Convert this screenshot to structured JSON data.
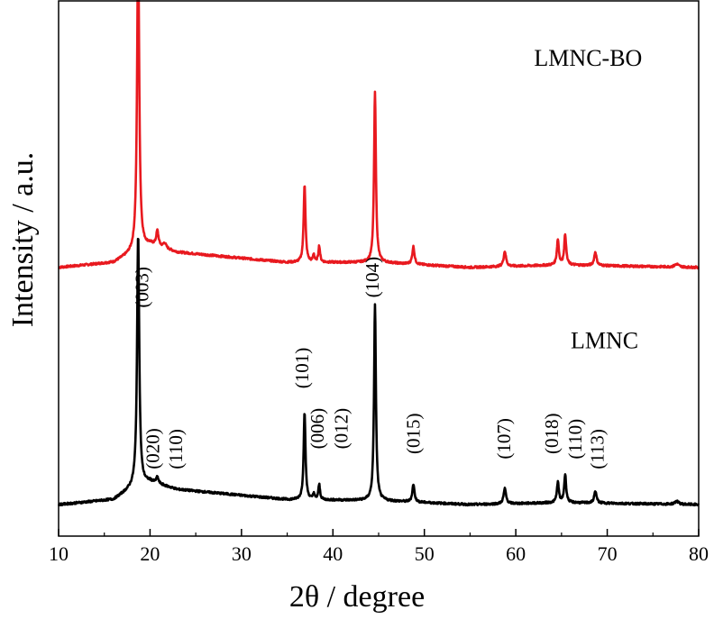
{
  "chart_data": {
    "type": "line",
    "xlabel": "2θ / degree",
    "ylabel": "Intensity / a.u.",
    "xlim": [
      10,
      80
    ],
    "x_ticks": [
      10,
      20,
      30,
      40,
      50,
      60,
      70,
      80
    ],
    "y_ticks_shown": false,
    "grid": false,
    "colors": {
      "LMNC-BO": "#e8191f",
      "LMNC": "#000000"
    },
    "series": [
      {
        "name": "LMNC-BO",
        "baseline": 0.47,
        "background": [
          [
            10,
            0.0
          ],
          [
            16,
            0.01
          ],
          [
            18.2,
            0.03
          ],
          [
            20,
            0.045
          ],
          [
            23,
            0.03
          ],
          [
            35,
            0.01
          ],
          [
            45,
            0.01
          ],
          [
            55,
            0.0
          ],
          [
            65,
            0.005
          ],
          [
            80,
            0.0
          ]
        ],
        "peaks": [
          {
            "x": 18.7,
            "h": 0.61,
            "w": 0.14
          },
          {
            "x": 20.8,
            "h": 0.03,
            "w": 0.15
          },
          {
            "x": 21.6,
            "h": 0.01,
            "w": 0.2
          },
          {
            "x": 36.9,
            "h": 0.155,
            "w": 0.12
          },
          {
            "x": 37.9,
            "h": 0.015,
            "w": 0.1
          },
          {
            "x": 38.5,
            "h": 0.032,
            "w": 0.11
          },
          {
            "x": 44.6,
            "h": 0.34,
            "w": 0.12
          },
          {
            "x": 48.8,
            "h": 0.035,
            "w": 0.14
          },
          {
            "x": 58.8,
            "h": 0.03,
            "w": 0.16
          },
          {
            "x": 64.6,
            "h": 0.05,
            "w": 0.13
          },
          {
            "x": 65.4,
            "h": 0.06,
            "w": 0.13
          },
          {
            "x": 68.7,
            "h": 0.027,
            "w": 0.15
          },
          {
            "x": 77.6,
            "h": 0.006,
            "w": 0.25
          }
        ]
      },
      {
        "name": "LMNC",
        "baseline": 0.0,
        "background": [
          [
            10,
            0.0
          ],
          [
            16,
            0.01
          ],
          [
            18.2,
            0.035
          ],
          [
            20,
            0.045
          ],
          [
            23,
            0.03
          ],
          [
            35,
            0.01
          ],
          [
            45,
            0.008
          ],
          [
            55,
            0.0
          ],
          [
            65,
            0.004
          ],
          [
            80,
            0.0
          ]
        ],
        "peaks": [
          {
            "x": 18.7,
            "h": 0.5,
            "w": 0.14
          },
          {
            "x": 20.8,
            "h": 0.012,
            "w": 0.15
          },
          {
            "x": 36.9,
            "h": 0.175,
            "w": 0.12
          },
          {
            "x": 37.9,
            "h": 0.012,
            "w": 0.1
          },
          {
            "x": 38.5,
            "h": 0.03,
            "w": 0.11
          },
          {
            "x": 44.6,
            "h": 0.39,
            "w": 0.12
          },
          {
            "x": 48.8,
            "h": 0.035,
            "w": 0.14
          },
          {
            "x": 58.8,
            "h": 0.03,
            "w": 0.16
          },
          {
            "x": 64.6,
            "h": 0.04,
            "w": 0.13
          },
          {
            "x": 65.4,
            "h": 0.055,
            "w": 0.13
          },
          {
            "x": 68.7,
            "h": 0.024,
            "w": 0.15
          },
          {
            "x": 77.6,
            "h": 0.006,
            "w": 0.25
          }
        ]
      }
    ],
    "series_labels": [
      {
        "text": "LMNC-BO",
        "x": 62,
        "y": 0.87
      },
      {
        "text": "LMNC",
        "x": 66,
        "y": 0.31
      }
    ],
    "peak_labels": [
      {
        "text": "(003)",
        "x": 19.8,
        "y": 0.39
      },
      {
        "text": "(020)",
        "x": 21.0,
        "y": 0.07
      },
      {
        "text": "(110)",
        "x": 23.5,
        "y": 0.07
      },
      {
        "text": "(101)",
        "x": 37.3,
        "y": 0.23
      },
      {
        "text": "(006)",
        "x": 39.0,
        "y": 0.11
      },
      {
        "text": "(012)",
        "x": 41.6,
        "y": 0.11
      },
      {
        "text": "(104)",
        "x": 45.0,
        "y": 0.41
      },
      {
        "text": "(015)",
        "x": 49.5,
        "y": 0.1
      },
      {
        "text": "(107)",
        "x": 59.4,
        "y": 0.09
      },
      {
        "text": "(018)",
        "x": 64.6,
        "y": 0.1
      },
      {
        "text": "(110)",
        "x": 67.2,
        "y": 0.09
      },
      {
        "text": "(113)",
        "x": 69.6,
        "y": 0.07
      }
    ]
  }
}
